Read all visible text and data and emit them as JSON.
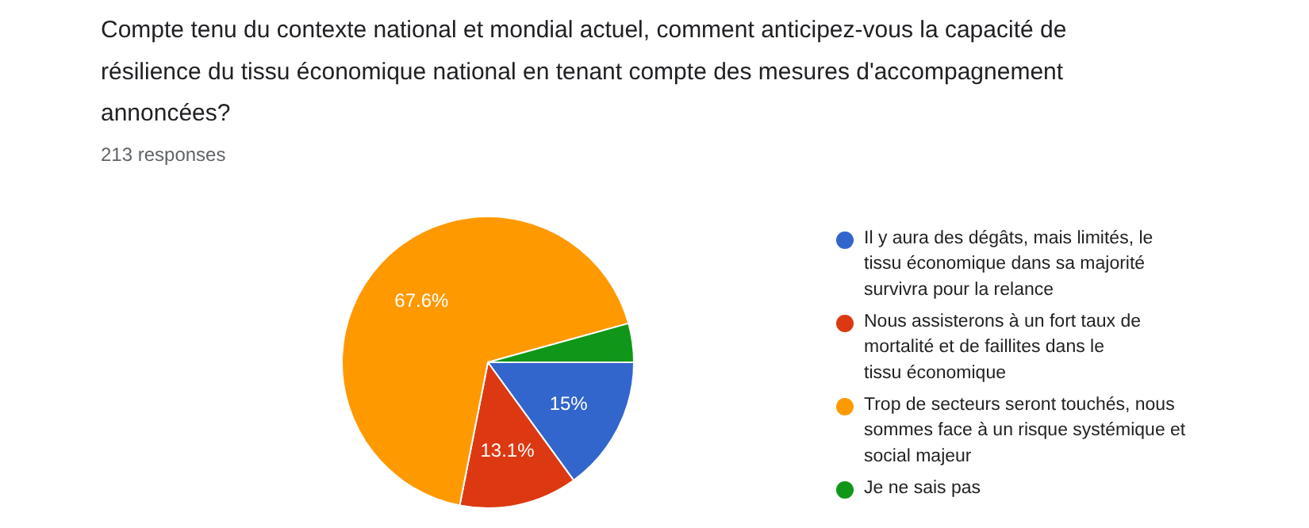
{
  "chart_data": {
    "type": "pie",
    "title": "Compte tenu du contexte national et mondial actuel, comment anticipez-vous la capacité de résilience du tissu économique national en tenant compte des mesures d'accompagnement annoncées?",
    "subtitle": "213 responses",
    "categories": [
      "Il y aura des dégâts, mais limités, le tissu économique dans sa majorité survivra pour la relance",
      "Nous assisterons à un fort taux de mortalité et de faillites dans le tissu économique",
      "Trop de secteurs seront touchés, nous sommes face à un risque systémique et social majeur",
      "Je ne sais pas"
    ],
    "values": [
      15,
      13.1,
      67.6,
      4.3
    ],
    "value_labels": [
      "15%",
      "13.1%",
      "67.6%",
      null
    ],
    "colors": [
      "#3366cc",
      "#dc3912",
      "#ff9900",
      "#109618"
    ],
    "legend": "right"
  }
}
